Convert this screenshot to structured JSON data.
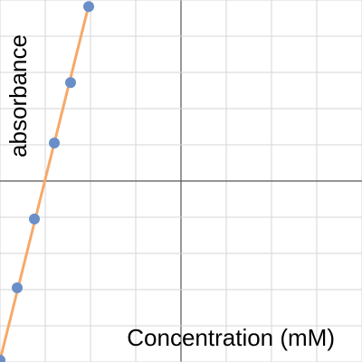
{
  "chart_data": {
    "type": "scatter",
    "x_label": "Concentration (mM)",
    "y_label": "absorbance",
    "xlim": [
      -4,
      4
    ],
    "ylim": [
      -5,
      5
    ],
    "xticks": [
      -4,
      -3,
      -2,
      -1,
      0,
      1,
      2,
      3,
      4
    ],
    "yticks": [
      -5,
      -4,
      -3,
      -2,
      -1,
      0,
      1,
      2,
      3,
      4,
      5
    ],
    "grid": true,
    "series": [
      {
        "color": "#6a8fc8",
        "x": [
          -4,
          -3.62,
          -3.24,
          -2.8,
          -2.44,
          -2.04
        ],
        "values": [
          -4.95,
          -2.95,
          -1.05,
          1.05,
          2.72,
          4.82
        ]
      }
    ],
    "fit_line": {
      "color": "#f5a96a",
      "x": [
        -4.02,
        -2.02
      ],
      "values": [
        -5.05,
        4.95
      ]
    }
  }
}
